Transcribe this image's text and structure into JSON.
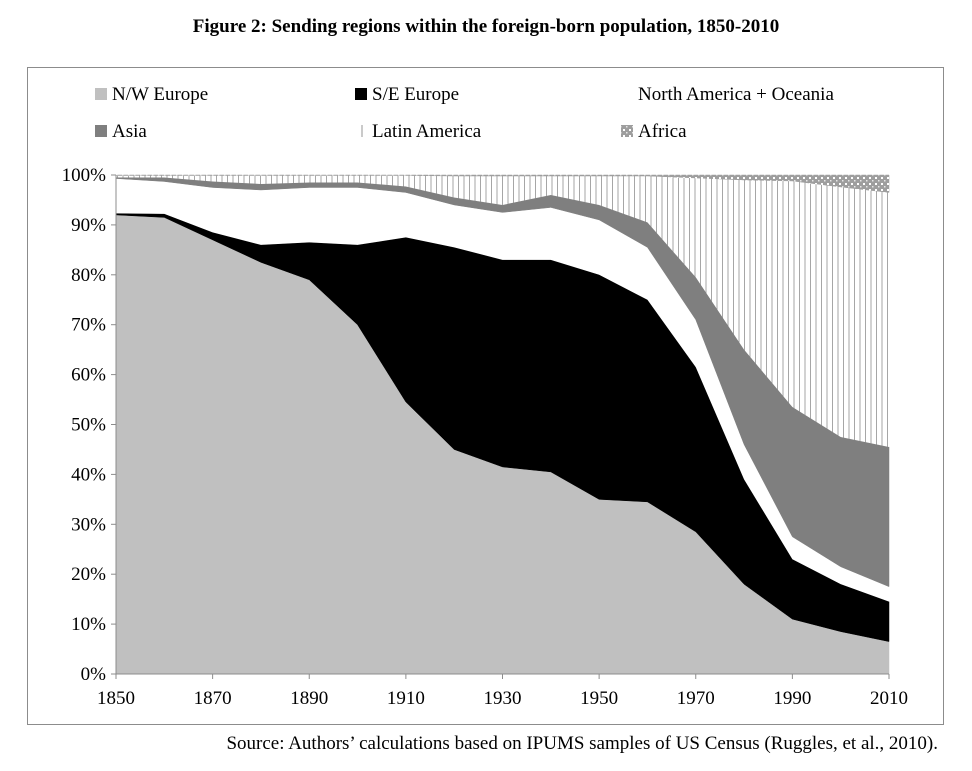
{
  "figure": {
    "title": "Figure 2: Sending regions within the foreign-born population, 1850-2010",
    "source": "Source: Authors’ calculations based on IPUMS samples of US Census (Ruggles, et al., 2010)."
  },
  "chart_data": {
    "type": "area",
    "stacked": true,
    "categories": [
      1850,
      1860,
      1870,
      1880,
      1890,
      1900,
      1910,
      1920,
      1930,
      1940,
      1950,
      1960,
      1970,
      1980,
      1990,
      2000,
      2010
    ],
    "x_tick_labels": [
      "1850",
      "1870",
      "1890",
      "1910",
      "1930",
      "1950",
      "1970",
      "1990",
      "2010"
    ],
    "y_tick_labels": [
      "0%",
      "10%",
      "20%",
      "30%",
      "40%",
      "50%",
      "60%",
      "70%",
      "80%",
      "90%",
      "100%"
    ],
    "ylim": [
      0,
      100
    ],
    "grid": false,
    "legend_position": "top",
    "series": [
      {
        "name": "N/W Europe",
        "color": "#c0c0c0",
        "values": [
          92,
          91.5,
          87,
          82.5,
          79,
          70,
          54.5,
          45,
          41.5,
          40.5,
          35,
          34.5,
          28.5,
          18,
          11,
          8.5,
          6.5
        ]
      },
      {
        "name": "S/E Europe",
        "color": "#000000",
        "values": [
          0.3,
          0.7,
          1.5,
          3.5,
          7.5,
          16,
          33,
          40.5,
          41.5,
          42.5,
          45,
          40.5,
          33,
          21,
          12,
          9.5,
          8
        ]
      },
      {
        "name": "North America + Oceania",
        "color": "#ffffff",
        "values": [
          7,
          6.5,
          9,
          11,
          11,
          11.5,
          9,
          8.5,
          9.5,
          10.5,
          11,
          10.5,
          9.5,
          7,
          4.5,
          3.5,
          3
        ]
      },
      {
        "name": "Asia",
        "color": "#7f7f7f",
        "values": [
          0.2,
          0.8,
          1.2,
          1.2,
          1,
          1,
          1.2,
          1.5,
          1.5,
          2.5,
          3,
          5,
          8.5,
          19,
          26,
          26,
          28
        ]
      },
      {
        "name": "Latin America",
        "color": "#ffffff",
        "values": [
          0.4,
          0.4,
          1.2,
          1.7,
          1.4,
          1.4,
          2.2,
          4.3,
          5.8,
          3.8,
          5.8,
          9.3,
          19.9,
          34,
          45.3,
          50.1,
          51
        ]
      },
      {
        "name": "Africa",
        "color": "#999999",
        "values": [
          0.1,
          0.1,
          0.1,
          0.1,
          0.1,
          0.1,
          0.1,
          0.2,
          0.2,
          0.2,
          0.2,
          0.2,
          0.6,
          1,
          1.2,
          2.4,
          3.5
        ]
      }
    ]
  }
}
